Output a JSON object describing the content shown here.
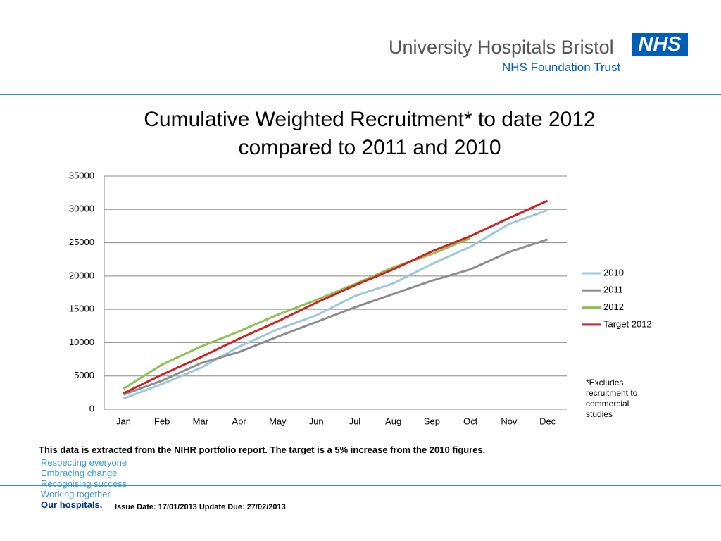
{
  "header": {
    "organisation": "University Hospitals Bristol",
    "badge": "NHS",
    "subtitle": "NHS Foundation Trust"
  },
  "chart_data": {
    "type": "line",
    "title": "Cumulative Weighted Recruitment* to date 2012\ncompared to 2011 and 2010",
    "categories": [
      "Jan",
      "Feb",
      "Mar",
      "Apr",
      "May",
      "Jun",
      "Jul",
      "Aug",
      "Sep",
      "Oct",
      "Nov",
      "Dec"
    ],
    "series": [
      {
        "name": "2010",
        "color": "#9cc8dc",
        "values": [
          1600,
          3800,
          6200,
          9400,
          12000,
          14100,
          17000,
          18900,
          21800,
          24400,
          27800,
          29900
        ]
      },
      {
        "name": "2011",
        "color": "#8c8c8c",
        "values": [
          2200,
          4300,
          6900,
          8600,
          10900,
          13100,
          15300,
          17300,
          19300,
          21000,
          23600,
          25500
        ]
      },
      {
        "name": "2012",
        "color": "#8cc153",
        "values": [
          3100,
          6700,
          9400,
          11700,
          14200,
          16400,
          18800,
          21300,
          23300,
          25700,
          null,
          null
        ]
      },
      {
        "name": "Target 2012",
        "color": "#d42020",
        "values": [
          2400,
          5200,
          7800,
          10600,
          13200,
          16000,
          18600,
          21000,
          23700,
          26000,
          28700,
          31300
        ]
      }
    ],
    "ylim": [
      0,
      35000
    ],
    "yticks": [
      0,
      5000,
      10000,
      15000,
      20000,
      25000,
      30000,
      35000
    ],
    "grid": true,
    "legend": "right",
    "annotation": "*Excludes recruitment to commercial studies"
  },
  "source_note": "This data is extracted from the NIHR portfolio report. The target is a 5% increase from the 2010 figures.",
  "values_list": [
    "Respecting everyone",
    "Embracing change",
    "Recognising success",
    "Working together",
    "Our hospitals."
  ],
  "issue_note": "Issue Date: 17/01/2013 Update Due:  27/02/2013"
}
